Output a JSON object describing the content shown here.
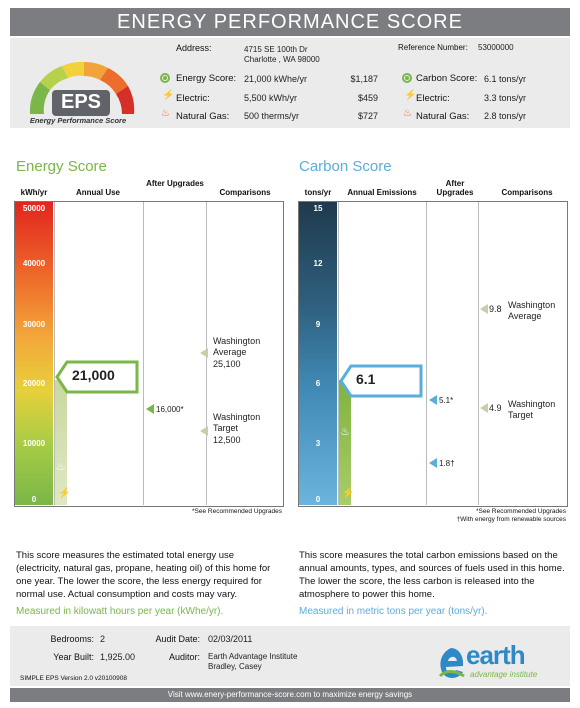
{
  "title": "ENERGY PERFORMANCE SCORE",
  "logo": {
    "text": "EPS",
    "subtitle": "Energy Performance Score"
  },
  "header": {
    "address_label": "Address:",
    "address_line1": "4715 SE 100th Dr",
    "address_line2": "Charlotte , WA 98000",
    "ref_label": "Reference Number:",
    "ref_value": "53000000",
    "energy_score_label": "Energy Score:",
    "energy_score_value": "21,000 kWhe/yr",
    "energy_score_cost": "$1,187",
    "electric_label": "Electric:",
    "electric_value": "5,500 kWh/yr",
    "electric_cost": "$459",
    "gas_label": "Natural Gas:",
    "gas_value": "500 therms/yr",
    "gas_cost": "$727",
    "carbon_score_label": "Carbon Score:",
    "carbon_score_value": "6.1 tons/yr",
    "carbon_electric_label": "Electric:",
    "carbon_electric_value": "3.3 tons/yr",
    "carbon_gas_label": "Natural Gas:",
    "carbon_gas_value": "2.8 tons/yr"
  },
  "energy": {
    "title": "Energy Score",
    "col_unit": "kWh/yr",
    "col_annual": "Annual Use",
    "col_after": "After Upgrades",
    "col_comp": "Comparisons",
    "ticks": [
      "50000",
      "40000",
      "30000",
      "20000",
      "10000",
      "0"
    ],
    "score": "21,000",
    "after": "16,000*",
    "wa_avg_label1": "Washington",
    "wa_avg_label2": "Average",
    "wa_avg_value": "25,100",
    "wa_target_label1": "Washington",
    "wa_target_label2": "Target",
    "wa_target_value": "12,500",
    "note": "*See Recommended Upgrades",
    "desc": "This score measures the estimated total energy use (electricity, natural gas, propane, heating oil) of this home for one year.  The lower the score, the less energy required for normal use. Actual consumption and costs may vary.",
    "measured": "Measured in kilowatt hours per year (kWhe/yr).",
    "color": "#7ab648"
  },
  "carbon": {
    "title": "Carbon Score",
    "col_unit": "tons/yr",
    "col_annual": "Annual Emissions",
    "col_after": "After Upgrades",
    "col_comp": "Comparisons",
    "ticks": [
      "15",
      "12",
      "9",
      "6",
      "3",
      "0"
    ],
    "score": "6.1",
    "after1": "5.1*",
    "after2": "1.8†",
    "wa_avg_value": "9.8",
    "wa_avg_label1": "Washington",
    "wa_avg_label2": "Average",
    "wa_target_value": "4.9",
    "wa_target_label1": "Washington",
    "wa_target_label2": "Target",
    "note1": "*See Recommended Upgrades",
    "note2": "†With energy from renewable sources",
    "desc": "This score measures the total carbon emissions based on the annual amounts, types, and sources of fuels used in this home.  The lower the score, the less carbon is released into the atmosphere to power this home.",
    "measured": "Measured in metric tons per year (tons/yr).",
    "color": "#5aaedc"
  },
  "info": {
    "bedrooms_label": "Bedrooms:",
    "bedrooms_value": "2",
    "year_label": "Year Built:",
    "year_value": "1,925.00",
    "audit_label": "Audit Date:",
    "audit_value": "02/03/2011",
    "auditor_label": "Auditor:",
    "auditor_line1": "Earth Advantage Institute",
    "auditor_line2": "Bradley, Casey",
    "version": "SIMPLE EPS Version 2.0 v20100908",
    "earth_logo_main": "earth",
    "earth_logo_sub": "advantage institute"
  },
  "footer": "Visit www.enery-performance-score.com to maximize energy savings"
}
